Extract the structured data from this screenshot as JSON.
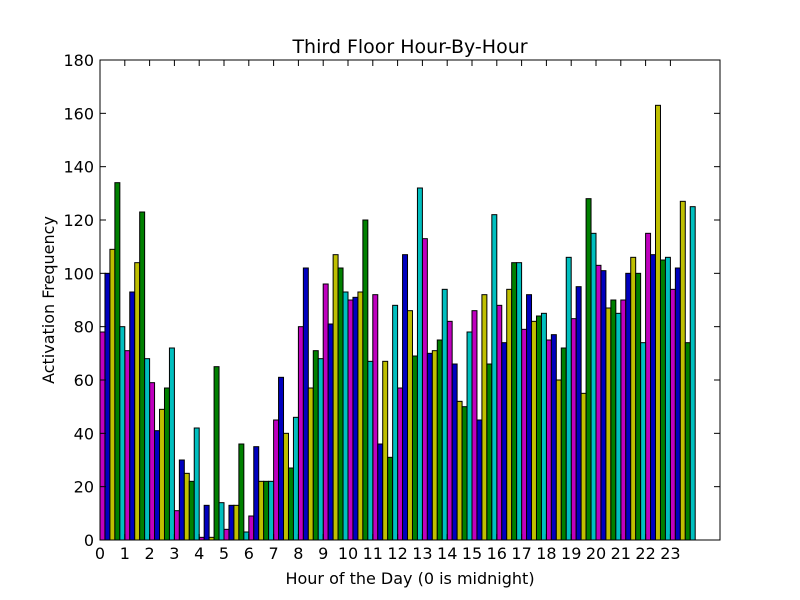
{
  "chart_data": {
    "type": "bar",
    "title": "Third Floor Hour-By-Hour",
    "xlabel": "Hour of the Day (0 is midnight)",
    "ylabel": "Activation Frequency",
    "ylim": [
      0,
      180
    ],
    "xlim": [
      0,
      25
    ],
    "yticks": [
      0,
      20,
      40,
      60,
      80,
      100,
      120,
      140,
      160,
      180
    ],
    "categories": [
      "0",
      "1",
      "2",
      "3",
      "4",
      "5",
      "6",
      "7",
      "8",
      "9",
      "10",
      "11",
      "12",
      "13",
      "14",
      "15",
      "16",
      "17",
      "18",
      "19",
      "20",
      "21",
      "22",
      "23"
    ],
    "grid": false,
    "legend": "none",
    "series": [
      {
        "color": "#bf00bf",
        "values": [
          78,
          71,
          59,
          11,
          1,
          4,
          9,
          45,
          80,
          96,
          90,
          92,
          57,
          113,
          82,
          86,
          88,
          79,
          75,
          83,
          103,
          90,
          115,
          94
        ]
      },
      {
        "color": "#0000bf",
        "values": [
          100,
          93,
          41,
          30,
          13,
          13,
          35,
          61,
          102,
          81,
          91,
          36,
          107,
          70,
          66,
          45,
          74,
          92,
          77,
          95,
          101,
          100,
          107,
          102
        ]
      },
      {
        "color": "#bfbf00",
        "values": [
          109,
          104,
          49,
          25,
          1,
          13,
          22,
          40,
          57,
          107,
          93,
          67,
          86,
          71,
          52,
          92,
          94,
          82,
          60,
          55,
          87,
          106,
          163,
          127
        ]
      },
      {
        "color": "#008000",
        "values": [
          134,
          123,
          57,
          22,
          65,
          36,
          22,
          27,
          71,
          102,
          120,
          31,
          69,
          75,
          50,
          66,
          104,
          84,
          72,
          128,
          90,
          100,
          105,
          74
        ]
      },
      {
        "color": "#00bfbf",
        "values": [
          80,
          68,
          72,
          42,
          14,
          3,
          22,
          46,
          68,
          93,
          67,
          88,
          132,
          94,
          78,
          122,
          104,
          85,
          106,
          115,
          85,
          74,
          106,
          125
        ]
      }
    ]
  }
}
